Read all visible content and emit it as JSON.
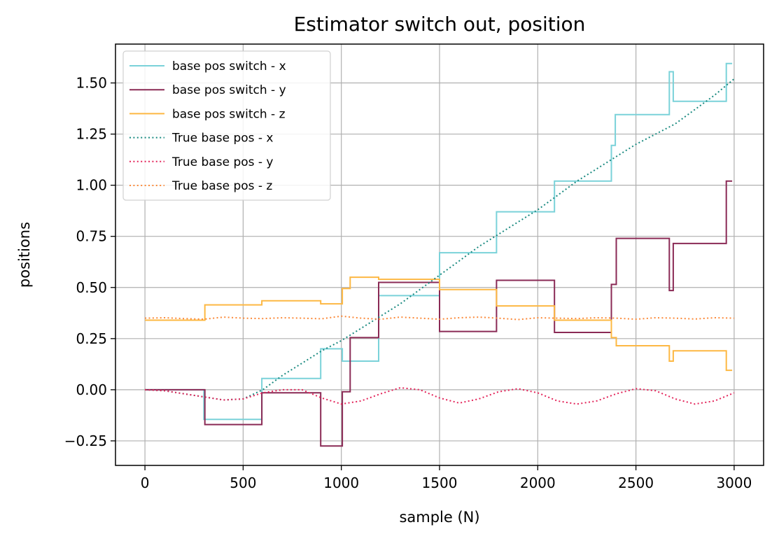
{
  "chart_data": {
    "type": "line",
    "title": "Estimator switch out, position",
    "xlabel": "sample (N)",
    "ylabel": "positions",
    "xlim": [
      -150,
      3150
    ],
    "ylim": [
      -0.37,
      1.69
    ],
    "xticks": [
      0,
      500,
      1000,
      1500,
      2000,
      2500,
      3000
    ],
    "xtick_labels": [
      "0",
      "500",
      "1000",
      "1500",
      "2000",
      "2500",
      "3000"
    ],
    "yticks": [
      -0.25,
      0.0,
      0.25,
      0.5,
      0.75,
      1.0,
      1.25,
      1.5
    ],
    "ytick_labels": [
      "−0.25",
      "0.00",
      "0.25",
      "0.50",
      "0.75",
      "1.00",
      "1.25",
      "1.50"
    ],
    "grid": true,
    "legend_position": "top-left",
    "series": [
      {
        "name": "base pos switch - x",
        "color": "#7ad2d9",
        "style": "solid",
        "step": true,
        "x": [
          0,
          300,
          300,
          595,
          595,
          895,
          895,
          1005,
          1005,
          1190,
          1190,
          1500,
          1500,
          1790,
          1790,
          2085,
          2085,
          2375,
          2375,
          2395,
          2395,
          2670,
          2670,
          2690,
          2690,
          2960,
          2960,
          2990
        ],
        "y": [
          0.0,
          0.0,
          -0.145,
          -0.145,
          0.055,
          0.055,
          0.2,
          0.2,
          0.14,
          0.14,
          0.46,
          0.46,
          0.67,
          0.67,
          0.87,
          0.87,
          1.02,
          1.02,
          1.195,
          1.195,
          1.345,
          1.345,
          1.555,
          1.555,
          1.41,
          1.41,
          1.595,
          1.595
        ]
      },
      {
        "name": "base pos switch - y",
        "color": "#8a2a55",
        "style": "solid",
        "step": true,
        "x": [
          0,
          305,
          305,
          595,
          595,
          895,
          895,
          1005,
          1005,
          1045,
          1045,
          1190,
          1190,
          1500,
          1500,
          1790,
          1790,
          2085,
          2085,
          2375,
          2375,
          2400,
          2400,
          2670,
          2670,
          2690,
          2690,
          2960,
          2960,
          2990
        ],
        "y": [
          0.0,
          0.0,
          -0.17,
          -0.17,
          -0.015,
          -0.015,
          -0.275,
          -0.275,
          -0.01,
          -0.01,
          0.255,
          0.255,
          0.525,
          0.525,
          0.285,
          0.285,
          0.535,
          0.535,
          0.28,
          0.28,
          0.515,
          0.515,
          0.74,
          0.74,
          0.485,
          0.485,
          0.715,
          0.715,
          1.02,
          1.02
        ]
      },
      {
        "name": "base pos switch - z",
        "color": "#fdb843",
        "style": "solid",
        "step": true,
        "x": [
          0,
          305,
          305,
          595,
          595,
          895,
          895,
          1005,
          1005,
          1045,
          1045,
          1190,
          1190,
          1500,
          1500,
          1790,
          1790,
          2085,
          2085,
          2375,
          2375,
          2400,
          2400,
          2670,
          2670,
          2690,
          2690,
          2960,
          2960,
          2990
        ],
        "y": [
          0.34,
          0.34,
          0.415,
          0.415,
          0.435,
          0.435,
          0.42,
          0.42,
          0.495,
          0.495,
          0.55,
          0.55,
          0.54,
          0.54,
          0.49,
          0.49,
          0.41,
          0.41,
          0.34,
          0.34,
          0.255,
          0.255,
          0.215,
          0.215,
          0.14,
          0.14,
          0.19,
          0.19,
          0.095,
          0.095
        ]
      },
      {
        "name": "True base pos - x",
        "color": "#1a8a80",
        "style": "dotted",
        "step": false,
        "x": [
          0,
          100,
          200,
          300,
          400,
          500,
          600,
          700,
          800,
          900,
          1000,
          1100,
          1200,
          1300,
          1400,
          1500,
          1600,
          1700,
          1800,
          1900,
          2000,
          2100,
          2200,
          2300,
          2400,
          2500,
          2600,
          2700,
          2800,
          2900,
          3000
        ],
        "y": [
          0.0,
          -0.005,
          -0.02,
          -0.035,
          -0.05,
          -0.045,
          0.0,
          0.07,
          0.13,
          0.19,
          0.24,
          0.3,
          0.36,
          0.42,
          0.49,
          0.56,
          0.63,
          0.7,
          0.76,
          0.82,
          0.88,
          0.95,
          1.02,
          1.08,
          1.14,
          1.2,
          1.25,
          1.3,
          1.37,
          1.44,
          1.52
        ]
      },
      {
        "name": "True base pos - y",
        "color": "#e3245a",
        "style": "dotted",
        "step": false,
        "x": [
          0,
          100,
          200,
          300,
          400,
          500,
          600,
          700,
          800,
          900,
          1000,
          1100,
          1200,
          1300,
          1400,
          1500,
          1600,
          1700,
          1800,
          1900,
          2000,
          2100,
          2200,
          2300,
          2400,
          2500,
          2600,
          2700,
          2800,
          2900,
          3000
        ],
        "y": [
          0.0,
          -0.005,
          -0.02,
          -0.035,
          -0.05,
          -0.045,
          -0.015,
          0.0,
          0.0,
          -0.04,
          -0.07,
          -0.055,
          -0.02,
          0.01,
          0.0,
          -0.04,
          -0.065,
          -0.045,
          -0.01,
          0.005,
          -0.015,
          -0.055,
          -0.07,
          -0.055,
          -0.02,
          0.005,
          -0.005,
          -0.045,
          -0.07,
          -0.055,
          -0.015
        ]
      },
      {
        "name": "True base pos - z",
        "color": "#fb8a3a",
        "style": "dotted",
        "step": false,
        "x": [
          0,
          100,
          200,
          300,
          400,
          500,
          600,
          700,
          800,
          900,
          1000,
          1100,
          1200,
          1300,
          1400,
          1500,
          1600,
          1700,
          1800,
          1900,
          2000,
          2100,
          2200,
          2300,
          2400,
          2500,
          2600,
          2700,
          2800,
          2900,
          3000
        ],
        "y": [
          0.35,
          0.352,
          0.348,
          0.345,
          0.355,
          0.35,
          0.348,
          0.352,
          0.35,
          0.347,
          0.36,
          0.35,
          0.345,
          0.355,
          0.35,
          0.345,
          0.352,
          0.355,
          0.35,
          0.343,
          0.352,
          0.35,
          0.348,
          0.352,
          0.35,
          0.345,
          0.352,
          0.35,
          0.346,
          0.352,
          0.35
        ]
      }
    ]
  }
}
